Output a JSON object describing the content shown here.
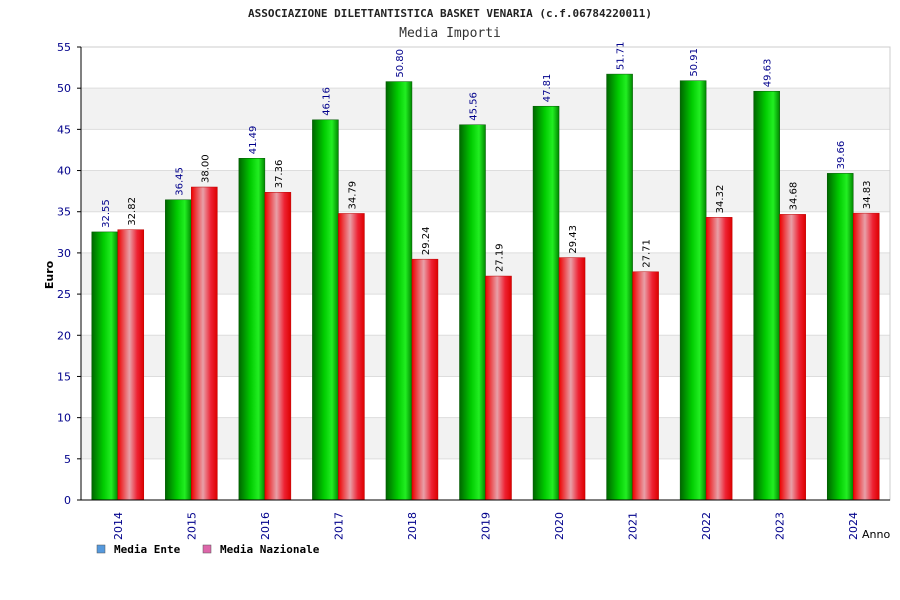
{
  "chart_data": {
    "type": "bar",
    "title": "ASSOCIAZIONE DILETTANTISTICA BASKET VENARIA (c.f.06784220011)",
    "subtitle": "Media Importi",
    "xlabel": "Anno",
    "ylabel": "Euro",
    "ylim": [
      0,
      55
    ],
    "yticks": [
      0,
      5,
      10,
      15,
      20,
      25,
      30,
      35,
      40,
      45,
      50,
      55
    ],
    "grid": true,
    "legend_position": "bottom-left",
    "categories": [
      "2014",
      "2015",
      "2016",
      "2017",
      "2018",
      "2019",
      "2020",
      "2021",
      "2022",
      "2023",
      "2024"
    ],
    "series": [
      {
        "name": "Media Ente",
        "color": "#00aa00",
        "legend_color": "#5599dd",
        "values": [
          32.55,
          36.45,
          41.49,
          46.16,
          50.8,
          45.56,
          47.81,
          51.71,
          50.91,
          49.63,
          39.66
        ],
        "labels": [
          "32.55",
          "36.45",
          "41.49",
          "46.16",
          "50.80",
          "45.56",
          "47.81",
          "51.71",
          "50.91",
          "49.63",
          "39.66"
        ]
      },
      {
        "name": "Media Nazionale",
        "color": "#ee0000",
        "legend_color": "#dd66aa",
        "values": [
          32.82,
          38.0,
          37.36,
          34.79,
          29.24,
          27.19,
          29.43,
          27.71,
          34.32,
          34.68,
          34.83
        ],
        "labels": [
          "32.82",
          "38.00",
          "37.36",
          "34.79",
          "29.24",
          "27.19",
          "29.43",
          "27.71",
          "34.32",
          "34.68",
          "34.83"
        ]
      }
    ]
  }
}
